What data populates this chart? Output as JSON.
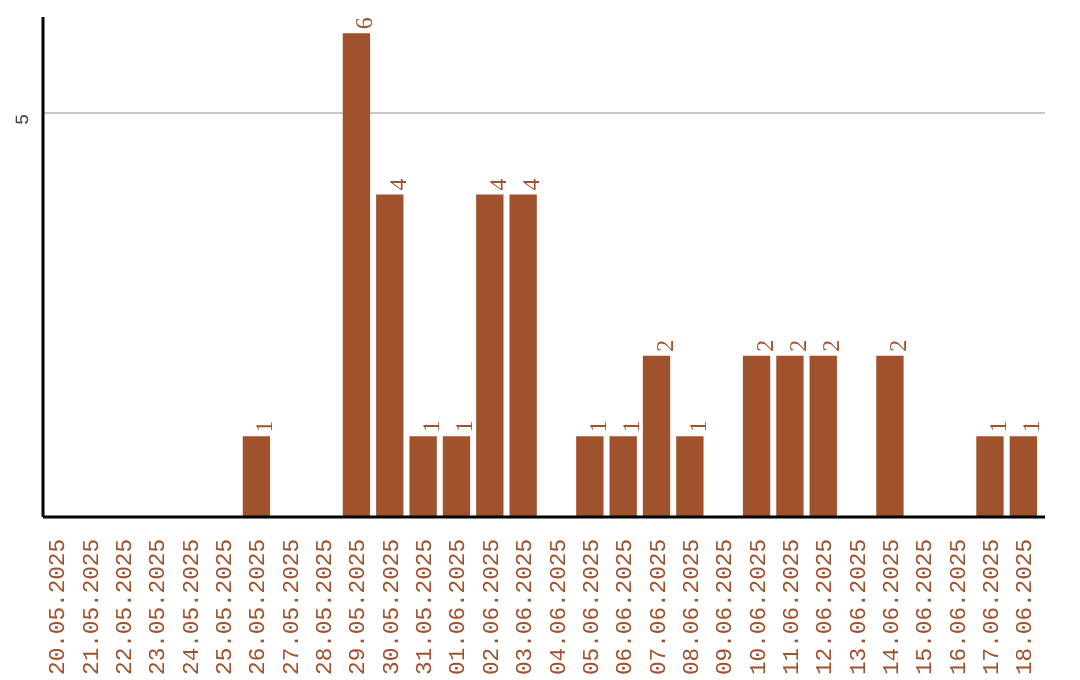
{
  "chart_data": {
    "type": "bar",
    "categories": [
      "20.05.2025",
      "21.05.2025",
      "22.05.2025",
      "23.05.2025",
      "24.05.2025",
      "25.05.2025",
      "26.05.2025",
      "27.05.2025",
      "28.05.2025",
      "29.05.2025",
      "30.05.2025",
      "31.05.2025",
      "01.06.2025",
      "02.06.2025",
      "03.06.2025",
      "04.06.2025",
      "05.06.2025",
      "06.06.2025",
      "07.06.2025",
      "08.06.2025",
      "09.06.2025",
      "10.06.2025",
      "11.06.2025",
      "12.06.2025",
      "13.06.2025",
      "14.06.2025",
      "15.06.2025",
      "16.06.2025",
      "17.06.2025",
      "18.06.2025"
    ],
    "values": [
      0,
      0,
      0,
      0,
      0,
      0,
      1,
      0,
      0,
      6,
      4,
      1,
      1,
      4,
      4,
      0,
      1,
      1,
      2,
      1,
      0,
      2,
      2,
      2,
      0,
      2,
      0,
      0,
      1,
      1
    ],
    "value_labels": [
      null,
      null,
      null,
      null,
      null,
      null,
      "1",
      null,
      null,
      "6",
      "4",
      "1",
      "1",
      "4",
      "4",
      null,
      "1",
      "1",
      "2",
      "1",
      null,
      "2",
      "2",
      "2",
      null,
      "2",
      null,
      null,
      "1",
      "1"
    ],
    "color": "#a0522d",
    "ylim": [
      0,
      6.2
    ],
    "yticks": [
      5
    ],
    "grid": "y"
  }
}
